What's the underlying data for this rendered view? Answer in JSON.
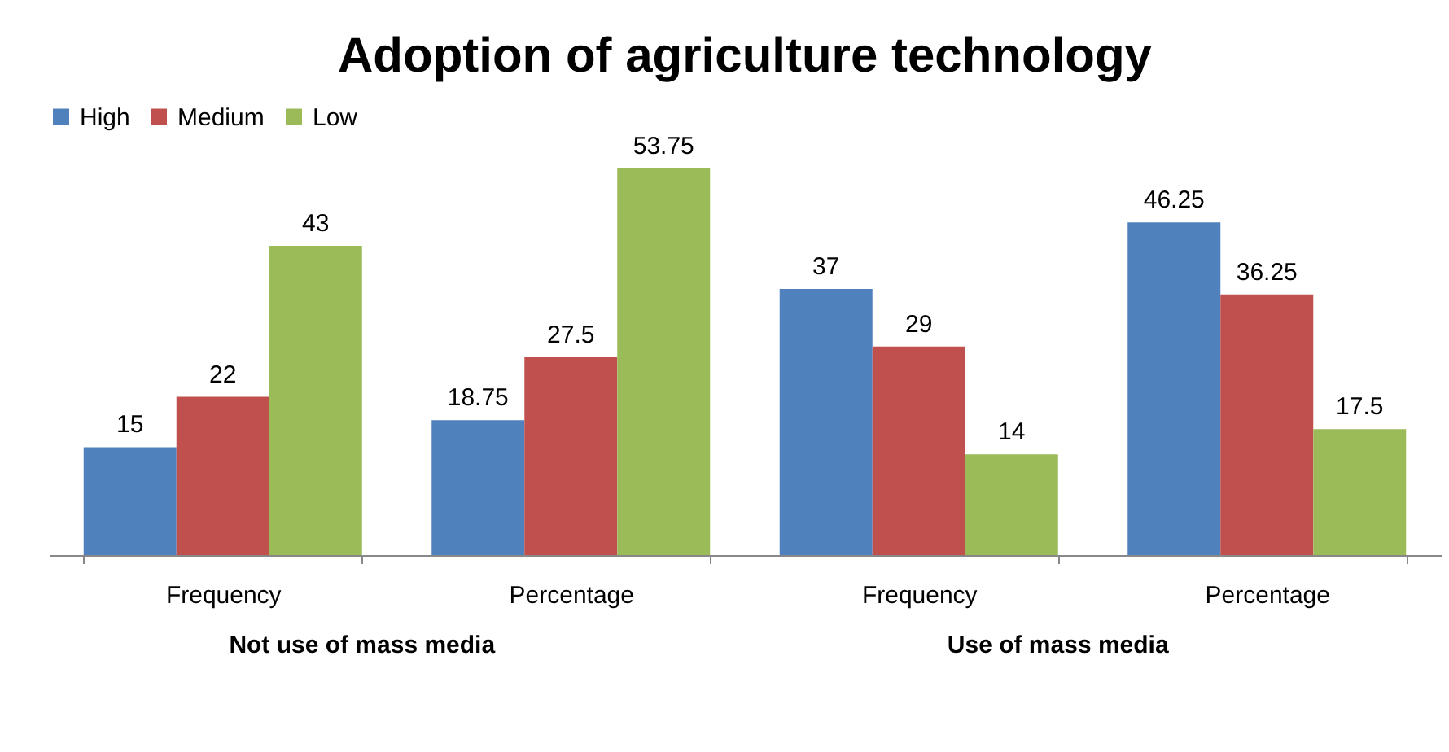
{
  "chart_data": {
    "type": "bar",
    "title": "Adoption of agriculture technology",
    "categories": [
      "Frequency",
      "Percentage",
      "Frequency",
      "Percentage"
    ],
    "series": [
      {
        "name": "High",
        "color": "#4f81bd",
        "values": [
          15,
          18.75,
          37,
          46.25
        ]
      },
      {
        "name": "Medium",
        "color": "#c0504d",
        "values": [
          22,
          27.5,
          29,
          36.25
        ]
      },
      {
        "name": "Low",
        "color": "#9bbb59",
        "values": [
          43,
          53.75,
          14,
          17.5
        ]
      }
    ],
    "annotations": [
      "Not use of mass media",
      "Use of mass media"
    ],
    "data_labels": true,
    "legend": "top",
    "grid": false
  }
}
